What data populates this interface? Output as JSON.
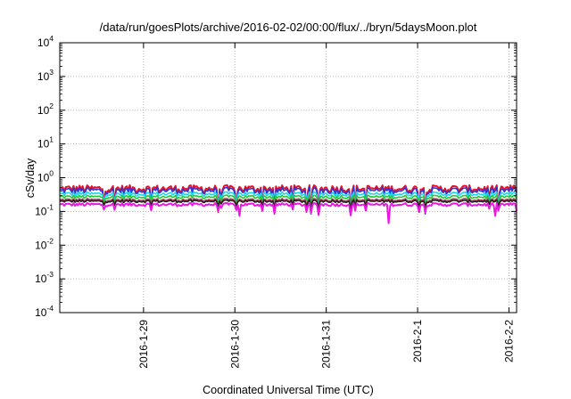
{
  "chart_data": {
    "type": "line",
    "title": "/data/run/goesPlots/archive/2016-02-02/00:00/flux/../bryn/5daysMoon.plot",
    "xlabel": "Coordinated Universal Time (UTC)",
    "ylabel": "cSv/day",
    "y_scale": "log",
    "ylim": [
      0.0001,
      10000
    ],
    "y_ticks": [
      {
        "base": "10",
        "exp": "4"
      },
      {
        "base": "10",
        "exp": "3"
      },
      {
        "base": "10",
        "exp": "2"
      },
      {
        "base": "10",
        "exp": "1"
      },
      {
        "base": "10",
        "exp": "0"
      },
      {
        "base": "10",
        "exp": "-1"
      },
      {
        "base": "10",
        "exp": "-2"
      },
      {
        "base": "10",
        "exp": "-3"
      },
      {
        "base": "10",
        "exp": "-4"
      }
    ],
    "xlim": [
      "2016-01-28 02:00",
      "2016-02-02 02:00"
    ],
    "x_ticks": [
      "2016-1-29",
      "2016-1-30",
      "2016-1-31",
      "2016-2-1",
      "2016-2-2"
    ],
    "grid": true,
    "series": [
      {
        "color": "#e8102a",
        "level": 0.48
      },
      {
        "color": "#2d36d8",
        "level": 0.42
      },
      {
        "color": "#16d8e8",
        "level": 0.33
      },
      {
        "color": "#24c830",
        "level": 0.27
      },
      {
        "color": "#a03e5c",
        "level": 0.22
      },
      {
        "color": "#202020",
        "level": 0.2
      },
      {
        "color": "#e818e0",
        "level": 0.16
      }
    ]
  }
}
